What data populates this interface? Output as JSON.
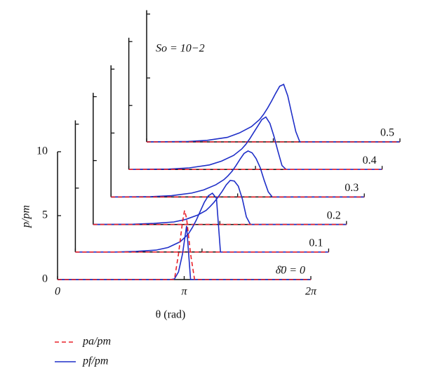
{
  "chart_data": {
    "type": "line",
    "annotation": "So = 10−2",
    "xlabel": "θ (rad)",
    "ylabel": "p/pm",
    "xlim": [
      0,
      6.2832
    ],
    "xticks": [
      {
        "value": 0,
        "label": "0"
      },
      {
        "value": 3.1416,
        "label": "π"
      },
      {
        "value": 6.2832,
        "label": "2π"
      }
    ],
    "ylim": [
      0,
      10
    ],
    "yticks": [
      0,
      5,
      10
    ],
    "depth_labels": [
      "δ̄0 = 0",
      "0.1",
      "0.2",
      "0.3",
      "0.4",
      "0.5"
    ],
    "series": [
      {
        "name": "pa/pm",
        "color": "#e8202a",
        "dash": true,
        "x": [
          0,
          2.9,
          3.0,
          3.1,
          3.15,
          3.2,
          3.3,
          3.4,
          6.2832
        ],
        "values": [
          [
            0,
            0,
            2.0,
            4.5,
            5.4,
            4.8,
            2.0,
            0,
            0
          ],
          [
            0,
            0,
            0,
            0,
            0,
            0,
            0,
            0,
            0
          ],
          [
            0,
            0,
            0,
            0,
            0,
            0,
            0,
            0,
            0
          ],
          [
            0,
            0,
            0,
            0,
            0,
            0,
            0,
            0,
            0
          ],
          [
            0,
            0,
            0,
            0,
            0,
            0,
            0,
            0,
            0
          ],
          [
            0,
            0,
            0,
            0,
            0,
            0,
            0,
            0,
            0
          ]
        ]
      },
      {
        "name": "pf/pm",
        "color": "#1f2fc8",
        "dash": false,
        "x": [
          0,
          1.0,
          1.5,
          2.0,
          2.3,
          2.6,
          2.8,
          2.9,
          3.0,
          3.1,
          3.2,
          3.3,
          3.4,
          3.5,
          3.6,
          3.7,
          3.8,
          3.9,
          4.0,
          4.5,
          6.2832
        ],
        "values": [
          [
            0,
            0,
            0,
            0,
            0,
            0,
            0,
            0.05,
            0.6,
            2.0,
            4.2,
            0,
            0,
            0,
            0,
            0,
            0,
            0,
            0,
            0,
            0
          ],
          [
            0,
            0,
            0.05,
            0.15,
            0.35,
            0.8,
            1.4,
            1.9,
            2.5,
            3.2,
            3.9,
            4.4,
            4.6,
            4.2,
            0,
            0,
            0,
            0,
            0,
            0,
            0
          ],
          [
            0,
            0.02,
            0.08,
            0.2,
            0.4,
            0.75,
            1.1,
            1.4,
            1.75,
            2.15,
            2.6,
            3.1,
            3.45,
            3.4,
            3.0,
            2.0,
            0.6,
            0,
            0,
            0,
            0
          ],
          [
            0,
            0.03,
            0.1,
            0.3,
            0.55,
            0.95,
            1.35,
            1.65,
            2.0,
            2.45,
            2.95,
            3.4,
            3.6,
            3.45,
            3.0,
            2.3,
            1.3,
            0.4,
            0,
            0,
            0
          ],
          [
            0,
            0.03,
            0.12,
            0.35,
            0.65,
            1.1,
            1.6,
            1.95,
            2.4,
            2.9,
            3.4,
            3.9,
            4.1,
            3.6,
            2.6,
            1.4,
            0.3,
            0,
            0,
            0,
            0
          ],
          [
            0,
            0.03,
            0.12,
            0.35,
            0.7,
            1.2,
            1.75,
            2.15,
            2.65,
            3.2,
            3.8,
            4.35,
            4.5,
            3.6,
            2.2,
            0.8,
            0,
            0,
            0,
            0,
            0
          ]
        ]
      }
    ]
  }
}
